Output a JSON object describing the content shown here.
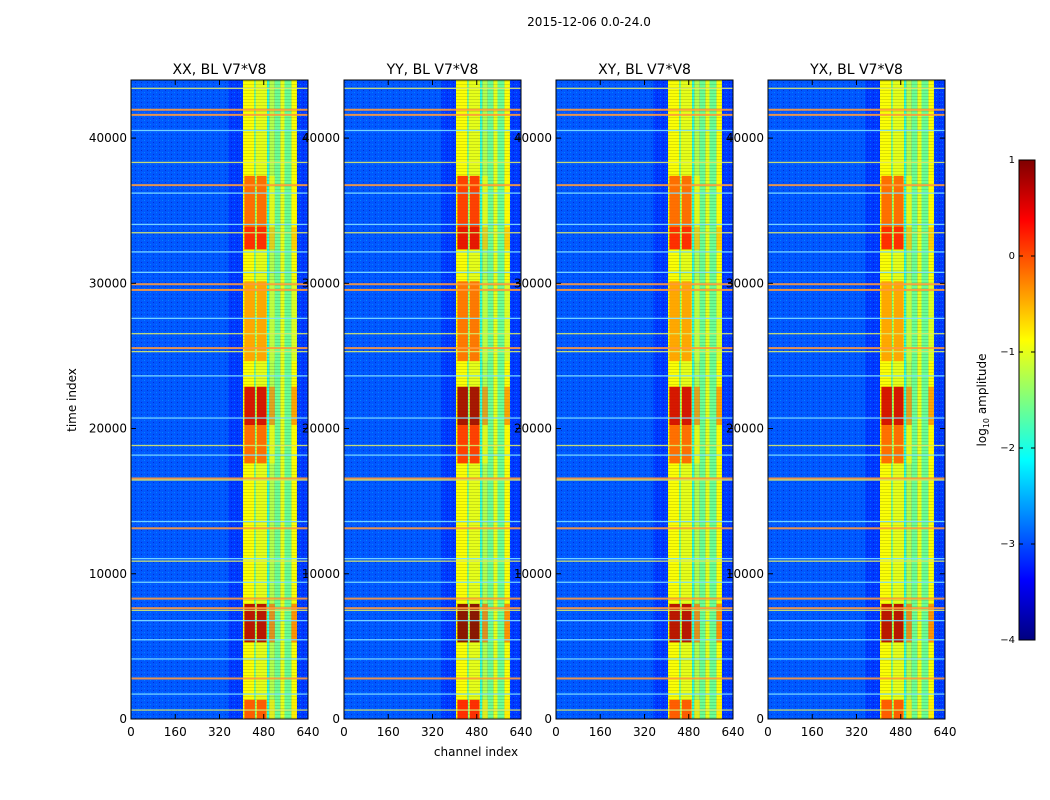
{
  "figure": {
    "suptitle": "2015-12-06 0.0-24.0"
  },
  "chart_data": [
    {
      "type": "heatmap",
      "title": "XX, BL V7*V8",
      "xlabel": "channel index",
      "ylabel": "time index",
      "xlim": [
        0,
        640
      ],
      "ylim": [
        0,
        44000
      ],
      "xticks": [
        0,
        160,
        320,
        480,
        640
      ],
      "yticks": [
        0,
        10000,
        20000,
        30000,
        40000
      ]
    },
    {
      "type": "heatmap",
      "title": "YY, BL V7*V8",
      "xlabel": "channel index",
      "ylabel": "time index",
      "xlim": [
        0,
        640
      ],
      "ylim": [
        0,
        44000
      ],
      "xticks": [
        0,
        160,
        320,
        480,
        640
      ],
      "yticks": [
        0,
        10000,
        20000,
        30000,
        40000
      ]
    },
    {
      "type": "heatmap",
      "title": "XY, BL V7*V8",
      "xlabel": "channel index",
      "ylabel": "time index",
      "xlim": [
        0,
        640
      ],
      "ylim": [
        0,
        44000
      ],
      "xticks": [
        0,
        160,
        320,
        480,
        640
      ],
      "yticks": [
        0,
        10000,
        20000,
        30000,
        40000
      ]
    },
    {
      "type": "heatmap",
      "title": "YX, BL V7*V8",
      "xlabel": "channel index",
      "ylabel": "time index",
      "xlim": [
        0,
        640
      ],
      "ylim": [
        0,
        44000
      ],
      "xticks": [
        0,
        160,
        320,
        480,
        640
      ],
      "yticks": [
        0,
        10000,
        20000,
        30000,
        40000
      ]
    }
  ],
  "shared_labels": {
    "xlabel": "channel index",
    "ylabel": "time index"
  },
  "colorbar": {
    "label_prefix": "log",
    "label_sub": "10",
    "label_suffix": " amplitude",
    "range": [
      -4,
      1
    ],
    "ticks": [
      1,
      0,
      -1,
      -2,
      -3,
      -4
    ],
    "tick_labels": [
      "1",
      "0",
      "−1",
      "−2",
      "−3",
      "−4"
    ],
    "colormap": "jet"
  },
  "colors": {
    "jet_0": "#00007f",
    "jet_1": "#0000ff",
    "jet_2": "#007fff",
    "jet_3": "#00ffff",
    "jet_4": "#7fff7f",
    "jet_5": "#ffff00",
    "jet_6": "#ff7f00",
    "jet_7": "#ff0000",
    "jet_8": "#7f0000"
  }
}
